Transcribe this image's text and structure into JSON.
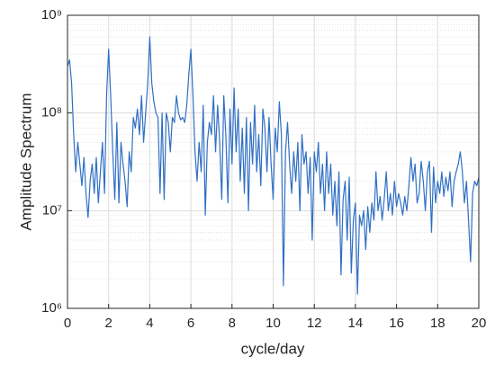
{
  "chart_data": {
    "type": "line",
    "x_label": "cycle/day",
    "y_label": "Amplitude Spectrum",
    "color": "#2f6fc4",
    "log_y": true,
    "grid": true,
    "minor_grid": true,
    "xlim": [
      0,
      20
    ],
    "xticks": [
      0,
      2,
      4,
      6,
      8,
      10,
      12,
      14,
      16,
      18,
      20
    ],
    "ylim": [
      1000000,
      1000000000
    ],
    "yticks": [
      {
        "value": 1000000,
        "label": "10⁶"
      },
      {
        "value": 10000000,
        "label": "10⁷"
      },
      {
        "value": 100000000,
        "label": "10⁸"
      },
      {
        "value": 1000000000,
        "label": "10⁹"
      }
    ],
    "x": [
      0,
      0.1,
      0.2,
      0.3,
      0.4,
      0.5,
      0.6,
      0.7,
      0.8,
      0.9,
      1,
      1.1,
      1.2,
      1.3,
      1.4,
      1.5,
      1.6,
      1.7,
      1.8,
      1.9,
      2,
      2.1,
      2.2,
      2.3,
      2.4,
      2.5,
      2.6,
      2.7,
      2.8,
      2.9,
      3,
      3.1,
      3.2,
      3.3,
      3.4,
      3.5,
      3.6,
      3.7,
      3.8,
      3.9,
      4,
      4.1,
      4.2,
      4.3,
      4.4,
      4.5,
      4.6,
      4.7,
      4.8,
      4.9,
      5,
      5.1,
      5.2,
      5.3,
      5.4,
      5.5,
      5.6,
      5.7,
      5.8,
      5.9,
      6,
      6.1,
      6.2,
      6.3,
      6.4,
      6.5,
      6.6,
      6.7,
      6.8,
      6.9,
      7,
      7.1,
      7.2,
      7.3,
      7.4,
      7.5,
      7.6,
      7.7,
      7.8,
      7.9,
      8,
      8.1,
      8.2,
      8.3,
      8.4,
      8.5,
      8.6,
      8.7,
      8.8,
      8.9,
      9,
      9.1,
      9.2,
      9.3,
      9.4,
      9.5,
      9.6,
      9.7,
      9.8,
      9.9,
      10,
      10.1,
      10.2,
      10.3,
      10.4,
      10.5,
      10.6,
      10.7,
      10.8,
      10.9,
      11,
      11.1,
      11.2,
      11.3,
      11.4,
      11.5,
      11.6,
      11.7,
      11.8,
      11.9,
      12,
      12.1,
      12.2,
      12.3,
      12.4,
      12.5,
      12.6,
      12.7,
      12.8,
      12.9,
      13,
      13.1,
      13.2,
      13.3,
      13.4,
      13.5,
      13.6,
      13.7,
      13.8,
      13.9,
      14,
      14.1,
      14.2,
      14.3,
      14.4,
      14.5,
      14.6,
      14.7,
      14.8,
      14.9,
      15,
      15.1,
      15.2,
      15.3,
      15.4,
      15.5,
      15.6,
      15.7,
      15.8,
      15.9,
      16,
      16.1,
      16.2,
      16.3,
      16.4,
      16.5,
      16.6,
      16.7,
      16.8,
      16.9,
      17,
      17.1,
      17.2,
      17.3,
      17.4,
      17.5,
      17.6,
      17.7,
      17.8,
      17.9,
      18,
      18.1,
      18.2,
      18.3,
      18.4,
      18.5,
      18.6,
      18.7,
      18.8,
      18.9,
      19,
      19.1,
      19.2,
      19.3,
      19.4,
      19.5,
      19.6,
      19.7,
      19.8,
      19.9,
      20
    ],
    "values": [
      300000000.0,
      350000000.0,
      200000000.0,
      60000000.0,
      25000000.0,
      50000000.0,
      30000000.0,
      18000000.0,
      35000000.0,
      15000000.0,
      8500000.0,
      20000000.0,
      30000000.0,
      15000000.0,
      35000000.0,
      12000000.0,
      25000000.0,
      50000000.0,
      15000000.0,
      150000000.0,
      450000000.0,
      150000000.0,
      40000000.0,
      13000000.0,
      80000000.0,
      12000000.0,
      50000000.0,
      30000000.0,
      20000000.0,
      11000000.0,
      40000000.0,
      25000000.0,
      90000000.0,
      70000000.0,
      110000000.0,
      60000000.0,
      150000000.0,
      50000000.0,
      100000000.0,
      200000000.0,
      600000000.0,
      200000000.0,
      130000000.0,
      100000000.0,
      90000000.0,
      15000000.0,
      100000000.0,
      13000000.0,
      100000000.0,
      80000000.0,
      40000000.0,
      90000000.0,
      80000000.0,
      150000000.0,
      100000000.0,
      85000000.0,
      90000000.0,
      80000000.0,
      120000000.0,
      250000000.0,
      450000000.0,
      150000000.0,
      40000000.0,
      20000000.0,
      50000000.0,
      25000000.0,
      120000000.0,
      9000000.0,
      50000000.0,
      80000000.0,
      60000000.0,
      150000000.0,
      40000000.0,
      120000000.0,
      50000000.0,
      13000000.0,
      150000000.0,
      60000000.0,
      12000000.0,
      110000000.0,
      30000000.0,
      180000000.0,
      40000000.0,
      110000000.0,
      20000000.0,
      70000000.0,
      15000000.0,
      90000000.0,
      10000000.0,
      80000000.0,
      30000000.0,
      120000000.0,
      25000000.0,
      60000000.0,
      18000000.0,
      110000000.0,
      70000000.0,
      25000000.0,
      90000000.0,
      30000000.0,
      13000000.0,
      70000000.0,
      40000000.0,
      130000000.0,
      60000000.0,
      1700000.0,
      40000000.0,
      80000000.0,
      30000000.0,
      15000000.0,
      40000000.0,
      20000000.0,
      50000000.0,
      10000000.0,
      60000000.0,
      30000000.0,
      40000000.0,
      15000000.0,
      35000000.0,
      5000000.0,
      40000000.0,
      25000000.0,
      50000000.0,
      15000000.0,
      30000000.0,
      10000000.0,
      40000000.0,
      15000000.0,
      30000000.0,
      9000000.0,
      20000000.0,
      7000000.0,
      25000000.0,
      2200000.0,
      13000000.0,
      20000000.0,
      5000000.0,
      22000000.0,
      2300000.0,
      8000000.0,
      12000000.0,
      1400000.0,
      9000000.0,
      7000000.0,
      10000000.0,
      4000000.0,
      11000000.0,
      6000000.0,
      12000000.0,
      8000000.0,
      25000000.0,
      10000000.0,
      14000000.0,
      8000000.0,
      13000000.0,
      25000000.0,
      10000000.0,
      15000000.0,
      9000000.0,
      20000000.0,
      11000000.0,
      15000000.0,
      12000000.0,
      9000000.0,
      14000000.0,
      10000000.0,
      18000000.0,
      35000000.0,
      20000000.0,
      30000000.0,
      12000000.0,
      15000000.0,
      32000000.0,
      20000000.0,
      10000000.0,
      25000000.0,
      32000000.0,
      6000000.0,
      28000000.0,
      12000000.0,
      20000000.0,
      15000000.0,
      25000000.0,
      14000000.0,
      22000000.0,
      16000000.0,
      25000000.0,
      11000000.0,
      20000000.0,
      25000000.0,
      30000000.0,
      40000000.0,
      25000000.0,
      12000000.0,
      20000000.0,
      8000000.0,
      3000000.0,
      15000000.0,
      20000000.0,
      18000000.0,
      22000000.0
    ]
  }
}
